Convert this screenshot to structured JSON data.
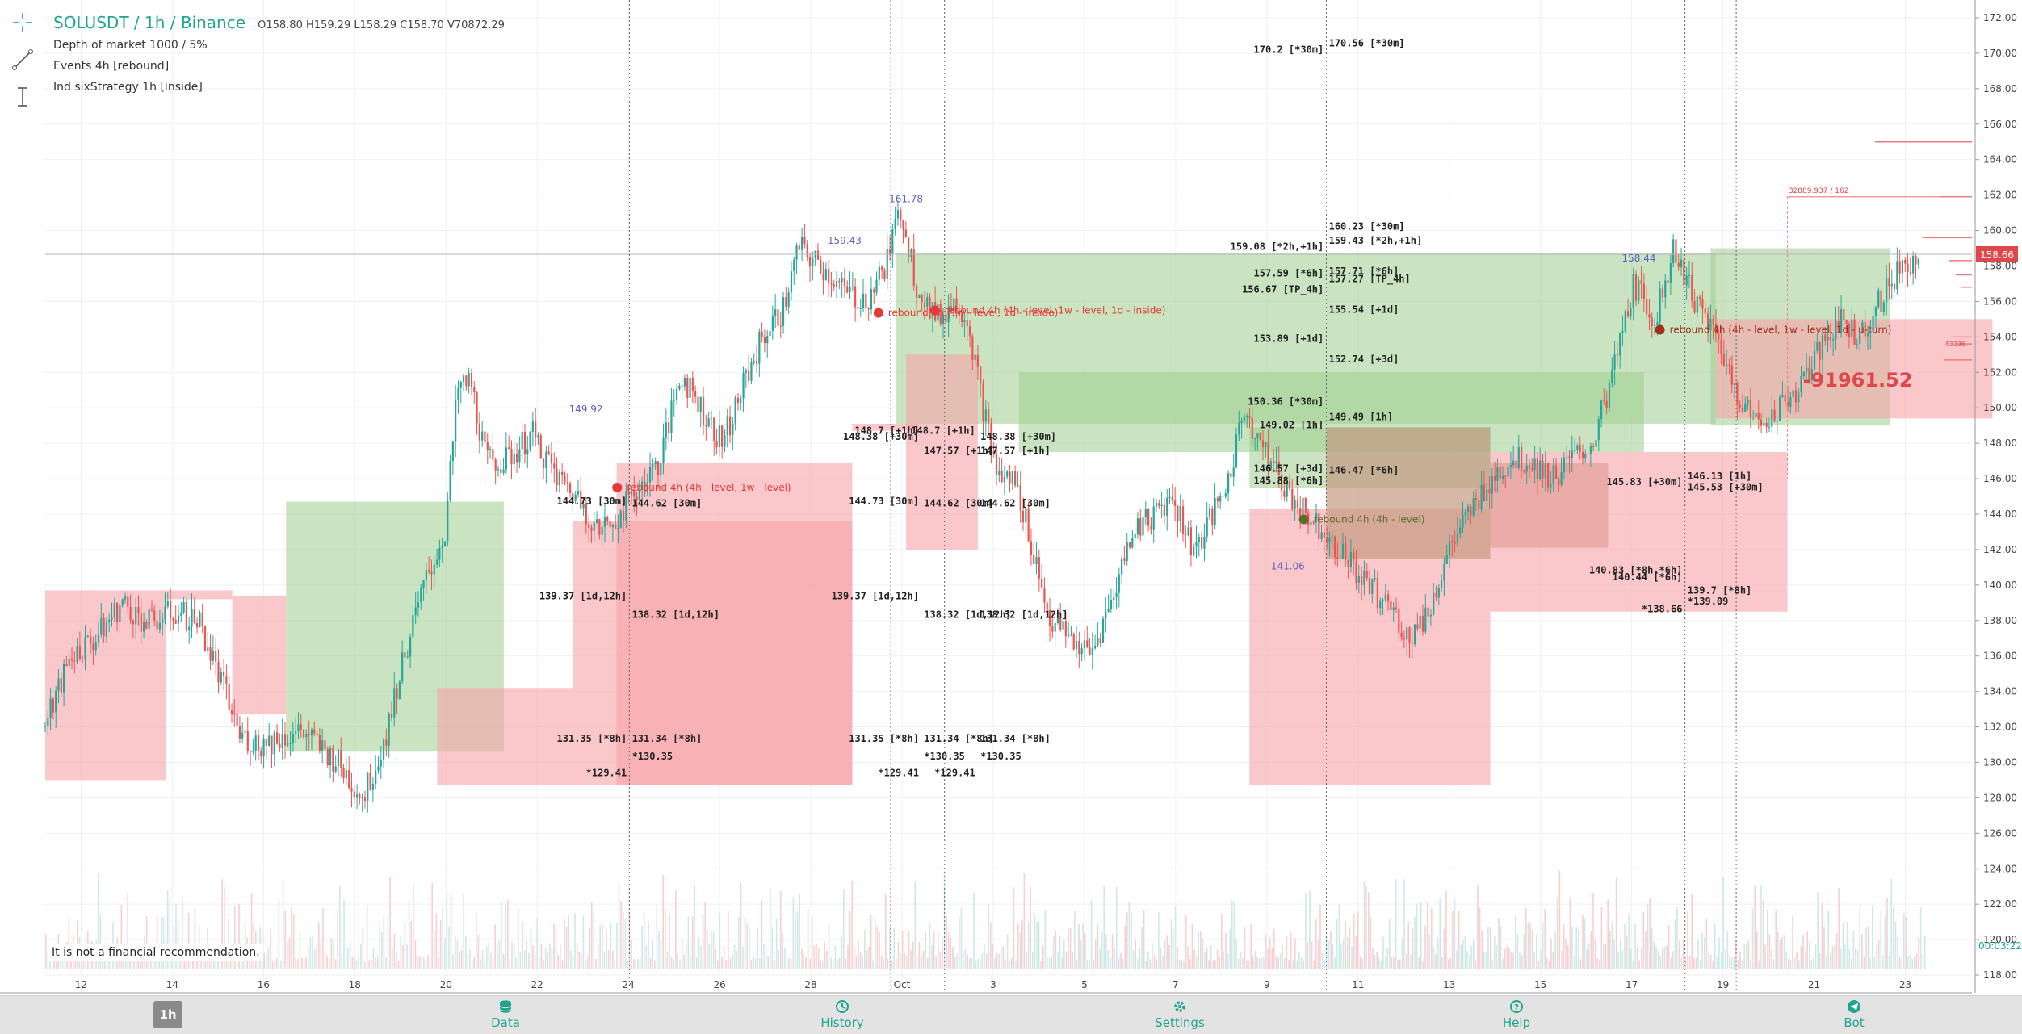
{
  "header": {
    "symbol_title": "SOLUSDT / 1h / Binance",
    "ohlc": {
      "open": "O158.80",
      "high": "H159.29",
      "low": "L158.29",
      "close": "C158.70",
      "volume": "V70872.29"
    },
    "indicators": [
      "Depth of market 1000 / 5%",
      "Events 4h [rebound]",
      "Ind sixStrategy 1h [inside]"
    ]
  },
  "toolbar": {
    "tools": [
      "crosshair-icon",
      "trend-line-icon",
      "measure-icon"
    ]
  },
  "disclaimer": "It is not a financial recommendation.",
  "bottom_nav": {
    "timeframe": "1h",
    "items": [
      {
        "label": "Data",
        "icon": "database-icon"
      },
      {
        "label": "History",
        "icon": "history-icon"
      },
      {
        "label": "Settings",
        "icon": "gear-icon"
      },
      {
        "label": "Help",
        "icon": "help-icon"
      },
      {
        "label": "Bot",
        "icon": "telegram-icon"
      }
    ]
  },
  "colors": {
    "up": "#26a69a",
    "down": "#ef5350",
    "green_zone": "#8bc47a",
    "red_zone": "#f4a3a8",
    "accent": "#1fa58f",
    "price_tag": "#e0474c",
    "crosshair_label": "#1fa58f"
  },
  "chart_data": {
    "type": "candlestick",
    "symbol": "SOLUSDT",
    "timeframe": "1h",
    "exchange": "Binance",
    "x_ticks": [
      "12",
      "14",
      "16",
      "18",
      "20",
      "22",
      "24",
      "26",
      "28",
      "Oct",
      "3",
      "5",
      "7",
      "9",
      "11",
      "13",
      "15",
      "17",
      "19",
      "21",
      "23"
    ],
    "y_ticks": [
      "118.00",
      "120.00",
      "122.00",
      "124.00",
      "126.00",
      "128.00",
      "130.00",
      "132.00",
      "134.00",
      "136.00",
      "138.00",
      "140.00",
      "142.00",
      "144.00",
      "146.00",
      "148.00",
      "150.00",
      "152.00",
      "154.00",
      "156.00",
      "158.00",
      "160.00",
      "162.00",
      "164.00",
      "166.00",
      "168.00",
      "170.00",
      "172.00"
    ],
    "ylim": [
      117,
      173
    ],
    "last_price": "158.66",
    "crosshair_time": "00:03:22",
    "depth_label": "32889.937 / 162",
    "depth_label_2": "43336",
    "pnl_value": "-91961.52",
    "approx_price_path": [
      [
        0,
        132
      ],
      [
        0.5,
        136
      ],
      [
        1,
        137
      ],
      [
        1.5,
        139
      ],
      [
        2,
        137.8
      ],
      [
        2.5,
        138.5
      ],
      [
        3,
        138
      ],
      [
        3.5,
        134
      ],
      [
        3.8,
        131.5
      ],
      [
        4.2,
        131
      ],
      [
        5,
        131.8
      ],
      [
        5.7,
        130
      ],
      [
        6.2,
        128
      ],
      [
        6.6,
        131
      ],
      [
        7,
        136
      ],
      [
        7.4,
        140
      ],
      [
        7.8,
        143
      ],
      [
        8.05,
        151
      ],
      [
        8.3,
        151.5
      ],
      [
        8.6,
        147
      ],
      [
        9.0,
        147
      ],
      [
        9.5,
        148.5
      ],
      [
        10,
        146
      ],
      [
        10.4,
        145
      ],
      [
        10.8,
        143
      ],
      [
        11.2,
        144
      ],
      [
        11.6,
        145.5
      ],
      [
        12,
        147
      ],
      [
        12.4,
        152
      ],
      [
        12.8,
        150
      ],
      [
        13.2,
        148
      ],
      [
        13.6,
        151
      ],
      [
        14,
        154
      ],
      [
        14.4,
        155.5
      ],
      [
        14.7,
        159
      ],
      [
        15.2,
        157.8
      ],
      [
        15.6,
        156.5
      ],
      [
        16.0,
        156
      ],
      [
        16.4,
        158
      ],
      [
        16.7,
        161.3
      ],
      [
        17.0,
        157
      ],
      [
        17.4,
        155
      ],
      [
        17.8,
        156
      ],
      [
        18.0,
        155
      ],
      [
        18.3,
        150
      ],
      [
        18.6,
        146
      ],
      [
        18.9,
        146
      ],
      [
        19.2,
        143
      ],
      [
        19.6,
        138
      ],
      [
        20,
        137
      ],
      [
        20.4,
        136
      ],
      [
        20.8,
        139
      ],
      [
        21.2,
        143
      ],
      [
        21.6,
        144
      ],
      [
        22,
        145
      ],
      [
        22.4,
        142
      ],
      [
        22.8,
        144
      ],
      [
        23.1,
        146
      ],
      [
        23.4,
        150
      ],
      [
        23.8,
        147.5
      ],
      [
        24.2,
        145.5
      ],
      [
        24.6,
        144
      ],
      [
        25.0,
        143
      ],
      [
        25.4,
        141.5
      ],
      [
        25.8,
        140
      ],
      [
        26.2,
        139
      ],
      [
        26.6,
        137
      ],
      [
        27.0,
        138.5
      ],
      [
        27.4,
        142
      ],
      [
        27.8,
        144
      ],
      [
        28.2,
        146
      ],
      [
        28.6,
        147
      ],
      [
        29.0,
        147
      ],
      [
        29.4,
        146
      ],
      [
        29.8,
        147
      ],
      [
        30.2,
        148
      ],
      [
        30.6,
        152
      ],
      [
        31.0,
        157
      ],
      [
        31.4,
        155
      ],
      [
        31.8,
        159
      ],
      [
        32.2,
        156
      ],
      [
        32.6,
        154
      ],
      [
        33.0,
        151
      ],
      [
        33.4,
        149
      ],
      [
        33.8,
        150
      ],
      [
        34.2,
        151
      ],
      [
        34.6,
        153
      ],
      [
        35.0,
        155
      ],
      [
        35.4,
        154
      ],
      [
        35.8,
        156
      ],
      [
        36.2,
        158
      ],
      [
        36.6,
        158.7
      ]
    ],
    "zones": [
      {
        "color": "red",
        "x1": 0,
        "x2": 2.35,
        "y1": 129,
        "y2": 139.7
      },
      {
        "color": "red",
        "x1": 2.35,
        "x2": 3.65,
        "y1": 139.2,
        "y2": 139.7
      },
      {
        "color": "red",
        "x1": 3.65,
        "x2": 4.7,
        "y1": 132.7,
        "y2": 139.4
      },
      {
        "color": "green",
        "x1": 4.7,
        "x2": 8.95,
        "y1": 130.6,
        "y2": 144.7
      },
      {
        "color": "red",
        "x1": 7.65,
        "x2": 10.3,
        "y1": 128.7,
        "y2": 134.2
      },
      {
        "color": "red",
        "x1": 10.3,
        "x2": 15.75,
        "y1": 128.7,
        "y2": 143.6
      },
      {
        "color": "red",
        "x1": 11.15,
        "x2": 15.75,
        "y1": 128.7,
        "y2": 146.9
      },
      {
        "color": "red",
        "x1": 15.75,
        "x2": 17.05,
        "y1": 148.7,
        "y2": 149.1
      },
      {
        "color": "green",
        "x1": 16.6,
        "x2": 32.6,
        "y1": 149.1,
        "y2": 158.7
      },
      {
        "color": "red",
        "x1": 16.8,
        "x2": 18.2,
        "y1": 142,
        "y2": 153
      },
      {
        "color": "green",
        "x1": 19.0,
        "x2": 31.2,
        "y1": 147.5,
        "y2": 152
      },
      {
        "color": "green",
        "x1": 23.5,
        "x2": 28.2,
        "y1": 145.5,
        "y2": 148.9
      },
      {
        "color": "red",
        "x1": 23.5,
        "x2": 28.2,
        "y1": 128.7,
        "y2": 144.3
      },
      {
        "color": "brown",
        "x1": 25.0,
        "x2": 28.2,
        "y1": 141.5,
        "y2": 148.9
      },
      {
        "color": "brown",
        "x1": 28.2,
        "x2": 30.5,
        "y1": 142.1,
        "y2": 146.9
      },
      {
        "color": "red",
        "x1": 28.2,
        "x2": 34.0,
        "y1": 138.5,
        "y2": 147.5
      },
      {
        "color": "green",
        "x1": 32.5,
        "x2": 36.0,
        "y1": 149.0,
        "y2": 159.0
      },
      {
        "color": "red",
        "x1": 32.6,
        "x2": 38.0,
        "y1": 149.4,
        "y2": 155.0
      }
    ],
    "level_labels": [
      {
        "text": "170.2 [*30m]",
        "x": 24.95,
        "y": 170.2,
        "anchor": "end"
      },
      {
        "text": "170.56 [*30m]",
        "x": 25.05,
        "y": 170.56,
        "anchor": "start"
      },
      {
        "text": "160.23 [*30m]",
        "x": 25.05,
        "y": 160.23,
        "anchor": "start"
      },
      {
        "text": "159.43 [*2h,+1h]",
        "x": 25.05,
        "y": 159.43,
        "anchor": "start"
      },
      {
        "text": "159.08 [*2h,+1h]",
        "x": 24.95,
        "y": 159.08,
        "anchor": "end"
      },
      {
        "text": "157.59 [*6h]",
        "x": 24.95,
        "y": 157.59,
        "anchor": "end"
      },
      {
        "text": "157.71 [*6h]",
        "x": 25.05,
        "y": 157.71,
        "anchor": "start"
      },
      {
        "text": "157.27 [TP_4h]",
        "x": 25.05,
        "y": 157.27,
        "anchor": "start"
      },
      {
        "text": "156.67 [TP_4h]",
        "x": 24.95,
        "y": 156.67,
        "anchor": "end"
      },
      {
        "text": "155.54 [+1d]",
        "x": 25.05,
        "y": 155.54,
        "anchor": "start"
      },
      {
        "text": "153.89 [+1d]",
        "x": 24.95,
        "y": 153.89,
        "anchor": "end"
      },
      {
        "text": "152.74 [+3d]",
        "x": 25.05,
        "y": 152.74,
        "anchor": "start"
      },
      {
        "text": "150.36 [*30m]",
        "x": 24.95,
        "y": 150.36,
        "anchor": "end"
      },
      {
        "text": "149.49 [1h]",
        "x": 25.05,
        "y": 149.49,
        "anchor": "start"
      },
      {
        "text": "149.02 [1h]",
        "x": 24.95,
        "y": 149.02,
        "anchor": "end"
      },
      {
        "text": "146.57 [+3d]",
        "x": 24.95,
        "y": 146.57,
        "anchor": "end"
      },
      {
        "text": "146.47 [*6h]",
        "x": 25.05,
        "y": 146.47,
        "anchor": "start"
      },
      {
        "text": "145.88 [*6h]",
        "x": 24.95,
        "y": 145.88,
        "anchor": "end"
      },
      {
        "text": "145.83 [+30m]",
        "x": 31.95,
        "y": 145.83,
        "anchor": "end"
      },
      {
        "text": "146.13 [1h]",
        "x": 32.05,
        "y": 146.13,
        "anchor": "start"
      },
      {
        "text": "145.53 [+30m]",
        "x": 32.05,
        "y": 145.53,
        "anchor": "start"
      },
      {
        "text": "140.83 [*8h,*6h]",
        "x": 31.95,
        "y": 140.83,
        "anchor": "end"
      },
      {
        "text": "140.44 [*6h]",
        "x": 31.95,
        "y": 140.44,
        "anchor": "end"
      },
      {
        "text": "139.7 [*8h]",
        "x": 32.05,
        "y": 139.7,
        "anchor": "start"
      },
      {
        "text": "*139.09",
        "x": 32.05,
        "y": 139.09,
        "anchor": "start"
      },
      {
        "text": "*138.66",
        "x": 31.95,
        "y": 138.66,
        "anchor": "end"
      },
      {
        "text": "144.73 [30m]",
        "x": 11.35,
        "y": 144.73,
        "anchor": "end"
      },
      {
        "text": "144.62 [30m]",
        "x": 11.45,
        "y": 144.62,
        "anchor": "start"
      },
      {
        "text": "139.37 [1d,12h]",
        "x": 11.35,
        "y": 139.37,
        "anchor": "end"
      },
      {
        "text": "138.32 [1d,12h]",
        "x": 11.45,
        "y": 138.32,
        "anchor": "start"
      },
      {
        "text": "131.35 [*8h]",
        "x": 11.35,
        "y": 131.35,
        "anchor": "end"
      },
      {
        "text": "131.34 [*8h]",
        "x": 11.45,
        "y": 131.34,
        "anchor": "start"
      },
      {
        "text": "*130.35",
        "x": 11.45,
        "y": 130.35,
        "anchor": "start"
      },
      {
        "text": "*129.41",
        "x": 11.35,
        "y": 129.41,
        "anchor": "end"
      },
      {
        "text": "144.73 [30m]",
        "x": 17.05,
        "y": 144.73,
        "anchor": "end"
      },
      {
        "text": "144.62 [30m]",
        "x": 17.15,
        "y": 144.62,
        "anchor": "start"
      },
      {
        "text": "144.62 [30m]",
        "x": 18.25,
        "y": 144.62,
        "anchor": "start"
      },
      {
        "text": "139.37 [1d,12h]",
        "x": 17.05,
        "y": 139.37,
        "anchor": "end"
      },
      {
        "text": "138.32 [1d,12h]",
        "x": 17.15,
        "y": 138.32,
        "anchor": "start"
      },
      {
        "text": "138.32 [1d,12h]",
        "x": 18.25,
        "y": 138.32,
        "anchor": "start"
      },
      {
        "text": "131.35 [*8h]",
        "x": 17.05,
        "y": 131.35,
        "anchor": "end"
      },
      {
        "text": "131.34 [*8h]",
        "x": 17.15,
        "y": 131.34,
        "anchor": "start"
      },
      {
        "text": "131.34 [*8h]",
        "x": 18.25,
        "y": 131.34,
        "anchor": "start"
      },
      {
        "text": "*130.35",
        "x": 17.15,
        "y": 130.35,
        "anchor": "start"
      },
      {
        "text": "*130.35",
        "x": 18.25,
        "y": 130.35,
        "anchor": "start"
      },
      {
        "text": "*129.41",
        "x": 17.05,
        "y": 129.41,
        "anchor": "end"
      },
      {
        "text": "*129.41",
        "x": 18.15,
        "y": 129.41,
        "anchor": "end"
      },
      {
        "text": "148.7 [+1h]",
        "x": 17.05,
        "y": 148.7,
        "anchor": "end"
      },
      {
        "text": "148.38 [+30m]",
        "x": 17.05,
        "y": 148.38,
        "anchor": "end"
      },
      {
        "text": "148.7 [+1h]",
        "x": 18.15,
        "y": 148.7,
        "anchor": "end"
      },
      {
        "text": "148.38 [+30m]",
        "x": 18.25,
        "y": 148.38,
        "anchor": "start"
      },
      {
        "text": "147.57 [+1h]",
        "x": 17.15,
        "y": 147.57,
        "anchor": "start"
      },
      {
        "text": "147.57 [+1h]",
        "x": 18.25,
        "y": 147.57,
        "anchor": "start"
      }
    ],
    "peak_labels": [
      {
        "text": "149.92",
        "x": 10.55,
        "y": 149.92
      },
      {
        "text": "159.43",
        "x": 15.6,
        "y": 159.43
      },
      {
        "text": "161.78",
        "x": 16.8,
        "y": 161.78
      },
      {
        "text": "141.06",
        "x": 24.25,
        "y": 141.06
      },
      {
        "text": "158.44",
        "x": 31.1,
        "y": 158.44
      }
    ],
    "events": [
      {
        "text": "rebound 4h (4h - level, 1w - level)",
        "x": 11.35,
        "y": 145.5,
        "color": "red"
      },
      {
        "text": "rebound 4h (1w - level, 1d - inside)",
        "x": 16.45,
        "y": 155.35,
        "color": "red"
      },
      {
        "text": "rebound 4h (4h - level, 1w - level, 1d - inside)",
        "x": 17.55,
        "y": 155.5,
        "color": "red"
      },
      {
        "text": "rebound 4h (4h - level)",
        "x": 24.75,
        "y": 143.7,
        "color": "green"
      },
      {
        "text": "rebound 4h (4h - level, 1w - level, 1d - u-turn)",
        "x": 31.7,
        "y": 154.4,
        "color": "darkred"
      }
    ],
    "vlines": [
      11.4,
      16.5,
      17.55,
      25.0,
      32.0,
      33.0
    ],
    "x_range": [
      0,
      37.6
    ]
  }
}
